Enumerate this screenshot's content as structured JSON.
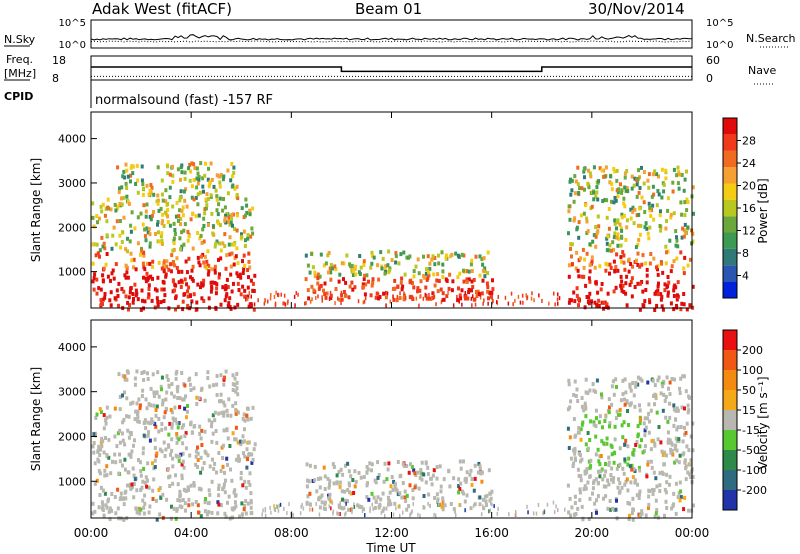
{
  "header": {
    "station": "Adak West (fitACF)",
    "beam": "Beam 01",
    "date": "30/Nov/2014"
  },
  "left_labels": {
    "nsky": "N.Sky",
    "freq_line1": "Freq.",
    "freq_line2": "[MHz]",
    "cpid": "CPID"
  },
  "right_labels": {
    "nsearch": "N.Search",
    "nave": "Nave"
  },
  "cpid_text": "normalsound (fast) -157 RF",
  "chart_data": [
    {
      "type": "line",
      "panel": "noise",
      "series": [
        {
          "name": "N.Sky"
        },
        {
          "name": "N.Search"
        }
      ],
      "left_ticks": [
        "10^5",
        "10^0"
      ],
      "right_ticks": [
        "10^5",
        "10^0"
      ]
    },
    {
      "type": "line",
      "panel": "frequency",
      "left_ticks": [
        "18",
        "8"
      ],
      "right_ticks": [
        "60",
        "0"
      ],
      "series": [
        {
          "name": "Freq. [MHz]",
          "segments": [
            [
              0,
              10,
              12.5
            ],
            [
              10,
              18,
              10.3
            ],
            [
              18,
              24,
              12.5
            ]
          ]
        },
        {
          "name": "Nave",
          "value": 14
        }
      ]
    },
    {
      "type": "heatmap",
      "panel": "power",
      "ylabel": "Slant Range [km]",
      "ylim": [
        180,
        4600
      ],
      "yticks": [
        "1000",
        "2000",
        "3000",
        "4000"
      ],
      "xlim": [
        0,
        24
      ],
      "colorbar": {
        "label": "Power [dB]",
        "ticks": [
          "4",
          "8",
          "12",
          "16",
          "20",
          "24",
          "28"
        ],
        "colors": [
          "#0022dd",
          "#2a55b0",
          "#2f7a78",
          "#3d9a55",
          "#6aa83a",
          "#b8c820",
          "#f4cc14",
          "#f5a030",
          "#f06a20",
          "#f03a1a",
          "#e00a0a"
        ]
      }
    },
    {
      "type": "heatmap",
      "panel": "velocity",
      "ylabel": "Slant Range [km]",
      "ylim": [
        180,
        4600
      ],
      "yticks": [
        "1000",
        "2000",
        "3000",
        "4000"
      ],
      "xlim": [
        0,
        24
      ],
      "xticks": [
        "00:00",
        "04:00",
        "08:00",
        "12:00",
        "16:00",
        "20:00",
        "00:00"
      ],
      "xlabel": "Time UT",
      "colorbar": {
        "label": "Velocity [m s⁻¹]",
        "ticks": [
          "200",
          "100",
          "50",
          "15",
          "-15",
          "-50",
          "-100",
          "-200"
        ],
        "colors": [
          "#2233aa",
          "#2f6b80",
          "#2e8a4a",
          "#58c830",
          "#b8b8b0",
          "#f5a818",
          "#f58a10",
          "#f05814",
          "#e81010"
        ]
      }
    }
  ]
}
